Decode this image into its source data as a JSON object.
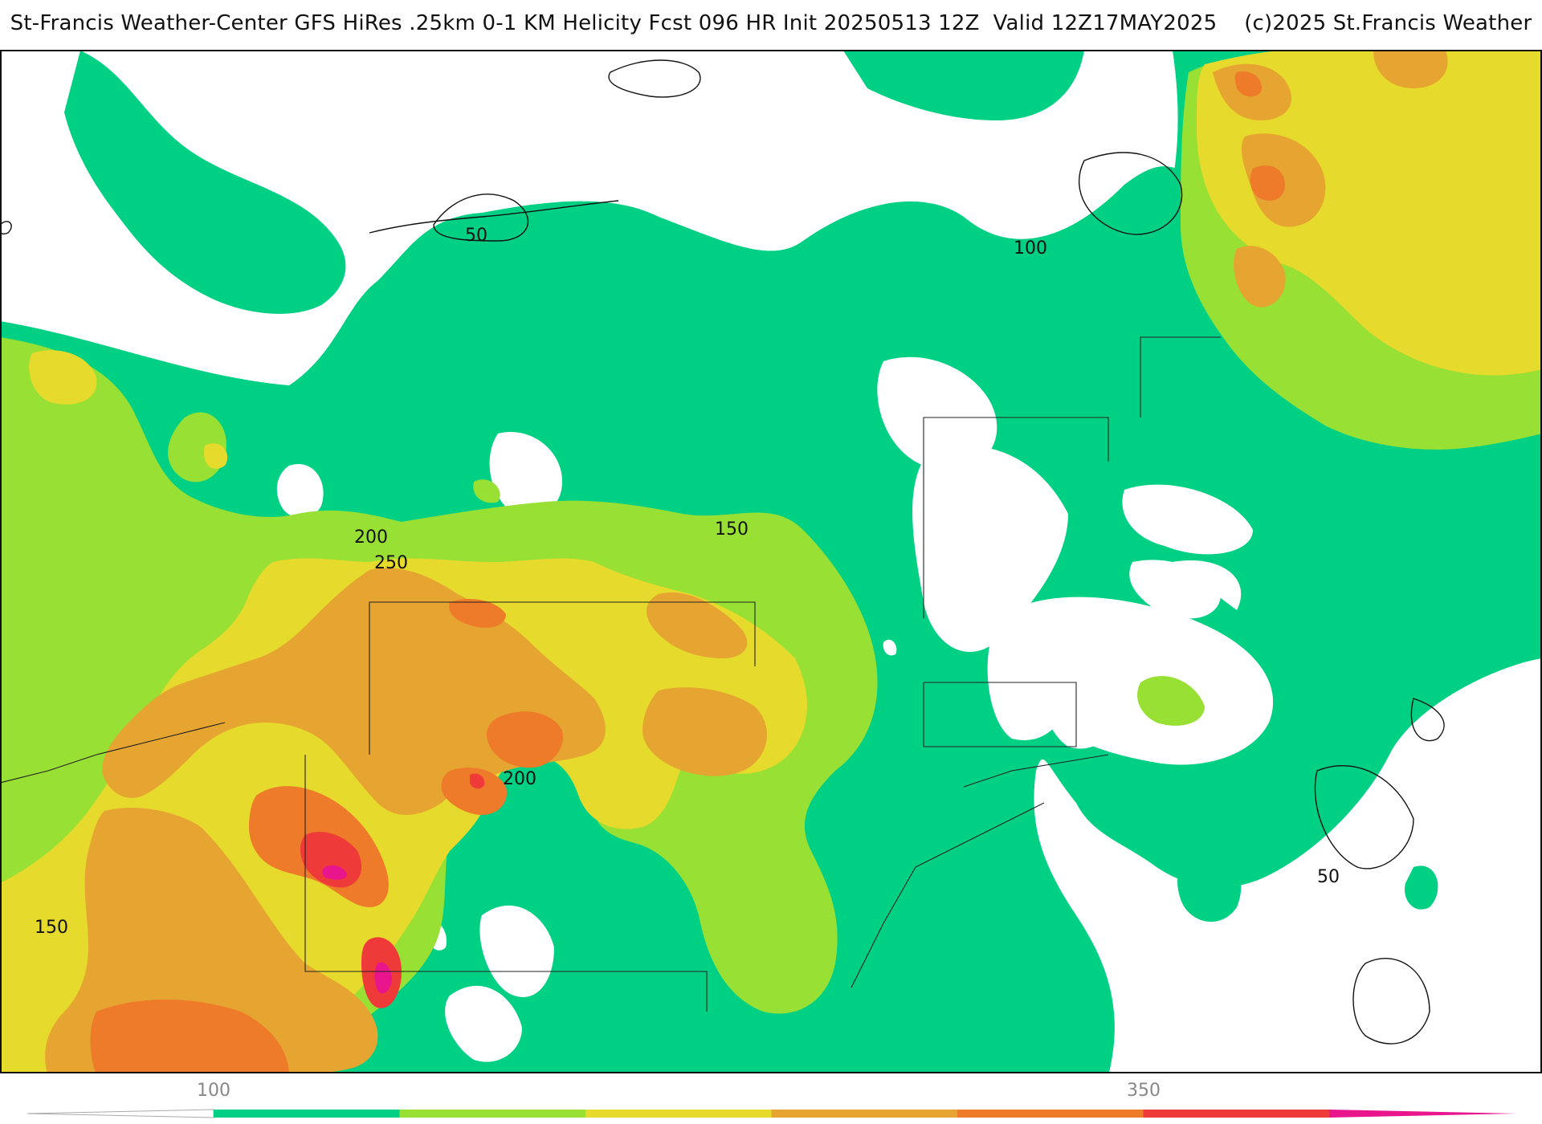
{
  "title": "St-Francis Weather-Center GFS HiRes .25km 0-1 KM Helicity Fcst 096 HR Init 20250513 12Z  Valid 12Z17MAY2025    (c)2025 St.Francis Weather",
  "contour_labels": [
    "50",
    "100",
    "150",
    "200",
    "250",
    "200",
    "150",
    "50"
  ],
  "colorbar": {
    "tick_labels": [
      "100",
      "350"
    ],
    "colors": [
      "#00d084",
      "#98e034",
      "#e6da2c",
      "#e6a530",
      "#ed7b2a",
      "#ef3a3a",
      "#e8158c"
    ]
  },
  "fill_colors": {
    "l50": "#00d084",
    "l100": "#98e034",
    "l150": "#e6da2c",
    "l200": "#e6a530",
    "l250": "#ed7b2a",
    "l300": "#ef3a3a",
    "l350": "#e8158c"
  }
}
